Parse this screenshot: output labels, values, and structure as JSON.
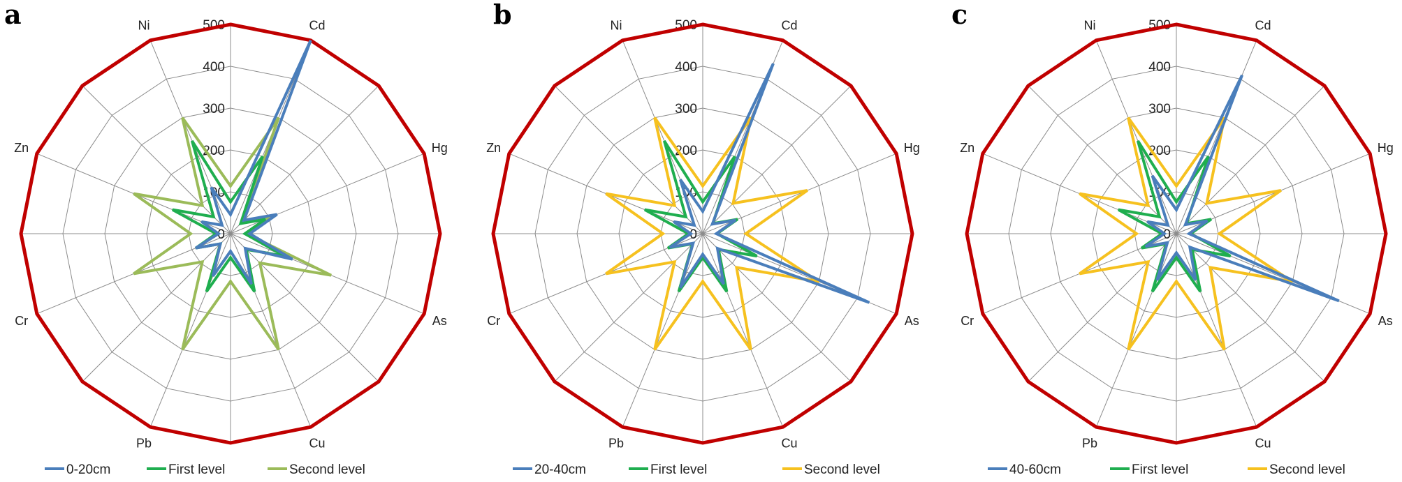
{
  "chart_data": [
    {
      "type": "radar",
      "panel": "a",
      "categories": [
        "Cd",
        "Hg",
        "As",
        "Cu",
        "Pb",
        "Cr",
        "Zn",
        "Ni"
      ],
      "r_ticks": [
        "0",
        "100",
        "200",
        "300",
        "400",
        "500"
      ],
      "rlim": [
        0,
        500
      ],
      "grid": true,
      "series": [
        {
          "name": "0-20cm",
          "color": "#4a7ebb",
          "values": [
            500,
            120,
            160,
            130,
            110,
            90,
            75,
            120
          ]
        },
        {
          "name": "First level",
          "color": "#1fae4f",
          "values": [
            200,
            90,
            140,
            150,
            150,
            90,
            150,
            240
          ]
        },
        {
          "name": "Second level",
          "color": "#9bbb59",
          "values": [
            300,
            100,
            260,
            300,
            300,
            250,
            250,
            300
          ]
        },
        {
          "name": "",
          "color": "#c00000",
          "values": [
            500,
            500,
            500,
            500,
            500,
            500,
            500,
            500
          ]
        }
      ],
      "legend": "bottom"
    },
    {
      "type": "radar",
      "panel": "b",
      "categories": [
        "Cd",
        "Hg",
        "As",
        "Cu",
        "Pb",
        "Cr",
        "Zn",
        "Ni"
      ],
      "r_ticks": [
        "0",
        "100",
        "200",
        "300",
        "400",
        "500"
      ],
      "rlim": [
        0,
        500
      ],
      "grid": true,
      "series": [
        {
          "name": "20-40cm",
          "color": "#4a7ebb",
          "values": [
            440,
            85,
            430,
            130,
            140,
            85,
            75,
            140
          ]
        },
        {
          "name": "First level",
          "color": "#1fae4f",
          "values": [
            200,
            90,
            140,
            150,
            150,
            90,
            150,
            240
          ]
        },
        {
          "name": "Second level",
          "color": "#f6c11f",
          "values": [
            300,
            270,
            300,
            300,
            300,
            250,
            250,
            300
          ]
        },
        {
          "name": "",
          "color": "#c00000",
          "values": [
            500,
            500,
            500,
            500,
            500,
            500,
            500,
            500
          ]
        }
      ],
      "legend": "bottom"
    },
    {
      "type": "radar",
      "panel": "c",
      "categories": [
        "Cd",
        "Hg",
        "As",
        "Cu",
        "Pb",
        "Cr",
        "Zn",
        "Ni"
      ],
      "r_ticks": [
        "0",
        "100",
        "200",
        "300",
        "400",
        "500"
      ],
      "rlim": [
        0,
        500
      ],
      "grid": true,
      "series": [
        {
          "name": "40-60cm",
          "color": "#4a7ebb",
          "values": [
            410,
            80,
            420,
            120,
            120,
            80,
            75,
            150
          ]
        },
        {
          "name": "First level",
          "color": "#1fae4f",
          "values": [
            200,
            90,
            140,
            150,
            150,
            90,
            150,
            240
          ]
        },
        {
          "name": "Second level",
          "color": "#f6c11f",
          "values": [
            300,
            270,
            300,
            300,
            300,
            250,
            250,
            300
          ]
        },
        {
          "name": "",
          "color": "#c00000",
          "values": [
            500,
            500,
            500,
            500,
            500,
            500,
            500,
            500
          ]
        }
      ],
      "legend": "bottom"
    }
  ]
}
